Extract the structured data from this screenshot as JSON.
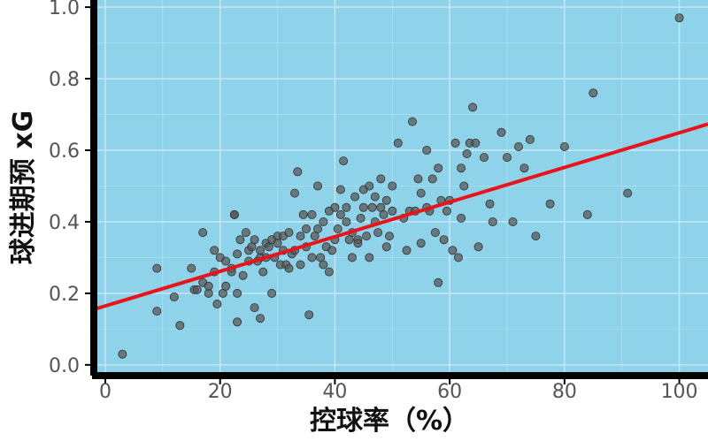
{
  "chart_data": {
    "type": "scatter",
    "title": "",
    "xlabel": "控球率（%）",
    "ylabel": "球进期预 xG",
    "xlim": [
      -2,
      105
    ],
    "ylim": [
      -0.03,
      1.02
    ],
    "xticks": [
      "0",
      "20",
      "40",
      "60",
      "80",
      "100"
    ],
    "yticks": [
      "0.0",
      "0.2",
      "0.4",
      "0.6",
      "0.8",
      "1.0"
    ],
    "grid": true,
    "colors": {
      "background": "#8fd3ea",
      "point": "#555555",
      "fit_line": "#e8141b",
      "grid": "#c8e9f4"
    },
    "fit_line": {
      "x": [
        -2,
        105
      ],
      "y": [
        0.155,
        0.673
      ]
    },
    "points": [
      [
        3,
        0.03
      ],
      [
        9,
        0.27
      ],
      [
        9,
        0.15
      ],
      [
        12,
        0.19
      ],
      [
        13,
        0.11
      ],
      [
        15,
        0.27
      ],
      [
        15.5,
        0.21
      ],
      [
        16,
        0.21
      ],
      [
        17,
        0.23
      ],
      [
        17,
        0.37
      ],
      [
        18,
        0.2
      ],
      [
        18,
        0.22
      ],
      [
        19,
        0.32
      ],
      [
        19,
        0.26
      ],
      [
        19.5,
        0.17
      ],
      [
        20,
        0.3
      ],
      [
        20.5,
        0.2
      ],
      [
        21,
        0.22
      ],
      [
        21,
        0.29
      ],
      [
        22,
        0.27
      ],
      [
        22,
        0.26
      ],
      [
        22.5,
        0.42
      ],
      [
        22.5,
        0.42
      ],
      [
        23,
        0.2
      ],
      [
        23,
        0.12
      ],
      [
        23,
        0.31
      ],
      [
        23.5,
        0.35
      ],
      [
        24,
        0.25
      ],
      [
        24.5,
        0.37
      ],
      [
        25,
        0.29
      ],
      [
        25,
        0.32
      ],
      [
        25.5,
        0.33
      ],
      [
        26,
        0.16
      ],
      [
        26,
        0.35
      ],
      [
        26.5,
        0.29
      ],
      [
        27,
        0.3
      ],
      [
        27,
        0.32
      ],
      [
        27,
        0.13
      ],
      [
        27.5,
        0.26
      ],
      [
        28,
        0.3
      ],
      [
        28,
        0.34
      ],
      [
        28.5,
        0.33
      ],
      [
        29,
        0.35
      ],
      [
        29,
        0.2
      ],
      [
        29.5,
        0.3
      ],
      [
        30,
        0.36
      ],
      [
        30,
        0.34
      ],
      [
        30.5,
        0.28
      ],
      [
        31,
        0.36
      ],
      [
        31,
        0.32
      ],
      [
        31.5,
        0.28
      ],
      [
        32,
        0.37
      ],
      [
        32,
        0.27
      ],
      [
        32.5,
        0.31
      ],
      [
        33,
        0.48
      ],
      [
        33,
        0.32
      ],
      [
        33.5,
        0.54
      ],
      [
        34,
        0.36
      ],
      [
        34,
        0.28
      ],
      [
        34.5,
        0.42
      ],
      [
        35,
        0.38
      ],
      [
        35,
        0.33
      ],
      [
        35.5,
        0.14
      ],
      [
        36,
        0.3
      ],
      [
        36,
        0.42
      ],
      [
        36.5,
        0.36
      ],
      [
        37,
        0.5
      ],
      [
        37,
        0.38
      ],
      [
        37.5,
        0.3
      ],
      [
        38,
        0.28
      ],
      [
        38,
        0.4
      ],
      [
        38.5,
        0.33
      ],
      [
        39,
        0.43
      ],
      [
        39,
        0.26
      ],
      [
        39.5,
        0.32
      ],
      [
        40,
        0.44
      ],
      [
        40,
        0.35
      ],
      [
        40.5,
        0.38
      ],
      [
        41,
        0.49
      ],
      [
        41,
        0.42
      ],
      [
        41.5,
        0.57
      ],
      [
        42,
        0.4
      ],
      [
        42,
        0.44
      ],
      [
        42.5,
        0.35
      ],
      [
        43,
        0.3
      ],
      [
        43,
        0.37
      ],
      [
        43.5,
        0.47
      ],
      [
        44,
        0.35
      ],
      [
        44,
        0.34
      ],
      [
        44.5,
        0.41
      ],
      [
        45,
        0.49
      ],
      [
        45,
        0.44
      ],
      [
        45.5,
        0.36
      ],
      [
        46,
        0.3
      ],
      [
        46,
        0.5
      ],
      [
        46.5,
        0.44
      ],
      [
        47,
        0.47
      ],
      [
        47,
        0.4
      ],
      [
        47.5,
        0.37
      ],
      [
        48,
        0.44
      ],
      [
        48,
        0.52
      ],
      [
        48.5,
        0.42
      ],
      [
        49,
        0.33
      ],
      [
        49,
        0.46
      ],
      [
        49.5,
        0.36
      ],
      [
        50,
        0.5
      ],
      [
        50,
        0.43
      ],
      [
        51,
        0.62
      ],
      [
        52,
        0.41
      ],
      [
        52.5,
        0.32
      ],
      [
        53,
        0.43
      ],
      [
        53.5,
        0.68
      ],
      [
        54,
        0.43
      ],
      [
        54.5,
        0.52
      ],
      [
        55,
        0.48
      ],
      [
        55,
        0.34
      ],
      [
        56,
        0.6
      ],
      [
        56,
        0.44
      ],
      [
        56.5,
        0.43
      ],
      [
        57,
        0.52
      ],
      [
        57.5,
        0.37
      ],
      [
        58,
        0.55
      ],
      [
        58,
        0.23
      ],
      [
        58.5,
        0.46
      ],
      [
        59,
        0.35
      ],
      [
        59.5,
        0.43
      ],
      [
        60,
        0.46
      ],
      [
        60.5,
        0.32
      ],
      [
        61,
        0.62
      ],
      [
        61.5,
        0.3
      ],
      [
        62,
        0.55
      ],
      [
        62,
        0.41
      ],
      [
        62.5,
        0.5
      ],
      [
        63,
        0.59
      ],
      [
        63.5,
        0.62
      ],
      [
        64,
        0.72
      ],
      [
        64.5,
        0.62
      ],
      [
        65,
        0.33
      ],
      [
        66,
        0.58
      ],
      [
        67,
        0.45
      ],
      [
        67.5,
        0.4
      ],
      [
        69,
        0.65
      ],
      [
        70,
        0.58
      ],
      [
        71,
        0.4
      ],
      [
        72,
        0.61
      ],
      [
        73,
        0.55
      ],
      [
        74,
        0.63
      ],
      [
        75,
        0.36
      ],
      [
        77.5,
        0.45
      ],
      [
        80,
        0.61
      ],
      [
        84,
        0.42
      ],
      [
        85,
        0.76
      ],
      [
        91,
        0.48
      ],
      [
        100,
        0.97
      ]
    ]
  }
}
